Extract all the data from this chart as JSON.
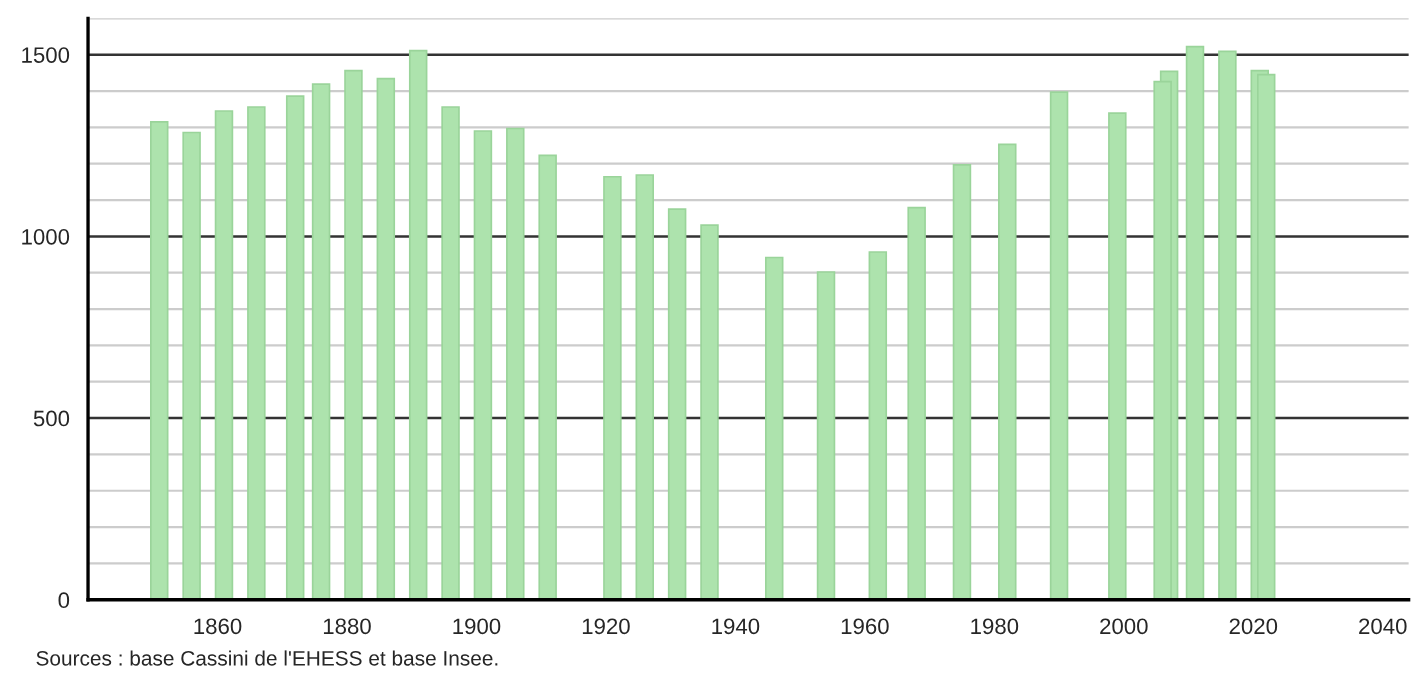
{
  "chart_data": {
    "type": "bar",
    "x": [
      1851,
      1856,
      1861,
      1866,
      1872,
      1876,
      1881,
      1886,
      1891,
      1896,
      1901,
      1906,
      1911,
      1921,
      1926,
      1931,
      1936,
      1946,
      1954,
      1962,
      1968,
      1975,
      1982,
      1990,
      1999,
      2006,
      2007,
      2011,
      2016,
      2021,
      2022
    ],
    "values": [
      1315,
      1286,
      1345,
      1356,
      1386,
      1419,
      1456,
      1434,
      1511,
      1356,
      1290,
      1297,
      1223,
      1164,
      1169,
      1075,
      1031,
      942,
      902,
      957,
      1079,
      1197,
      1253,
      1397,
      1339,
      1426,
      1454,
      1522,
      1509,
      1456,
      1445
    ],
    "color": "#ade3ad",
    "xlim": [
      1840,
      2044
    ],
    "xticks": [
      1860,
      1880,
      1900,
      1920,
      1940,
      1960,
      1980,
      2000,
      2020,
      2040
    ],
    "ylim": [
      0,
      1600
    ],
    "yticks": [
      0,
      {
        "value": 100,
        "label": null
      },
      {
        "value": 200,
        "label": null
      },
      {
        "value": 300,
        "label": null
      },
      {
        "value": 400,
        "label": null
      },
      500,
      {
        "value": 600,
        "label": null
      },
      {
        "value": 700,
        "label": null
      },
      {
        "value": 800,
        "label": null
      },
      {
        "value": 900,
        "label": null
      },
      1000,
      {
        "value": 1100,
        "label": null
      },
      {
        "value": 1200,
        "label": null
      },
      {
        "value": 1300,
        "label": null
      },
      {
        "value": 1400,
        "label": null
      },
      1500,
      {
        "value": 1600,
        "label": null
      }
    ],
    "grid": "y",
    "annotations": [
      "Sources : base Cassini de l'EHESS et base Insee."
    ]
  }
}
